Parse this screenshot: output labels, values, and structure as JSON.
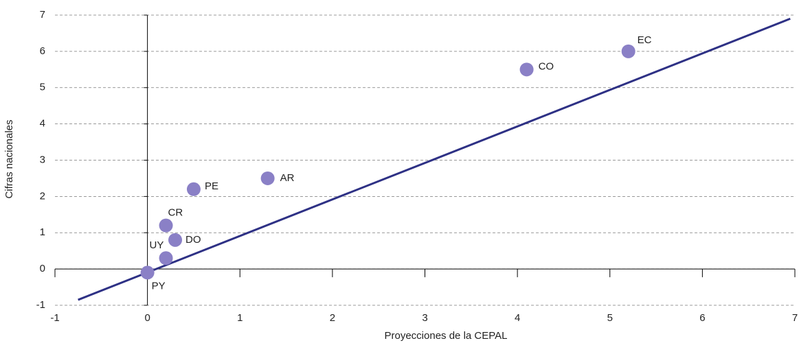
{
  "chart_data": {
    "type": "scatter",
    "x_label": "Proyecciones de la CEPAL",
    "y_label": "Cifras nacionales",
    "labels": [
      "PE",
      "AR",
      "CO",
      "EC",
      "CR",
      "DO",
      "UY",
      "PY"
    ],
    "x": [
      0.5,
      1.3,
      4.1,
      5.2,
      0.2,
      0.3,
      0.2,
      0
    ],
    "y": [
      2.2,
      2.5,
      5.5,
      6.0,
      1.2,
      0.8,
      0.3,
      -0.1
    ],
    "color": "#8a80c6",
    "reference_line": {
      "x": [
        -0.75,
        6.95
      ],
      "y": [
        -0.85,
        6.9
      ],
      "color": "#2e3185"
    },
    "xlim": [
      -1,
      7
    ],
    "ylim": [
      -1,
      7
    ],
    "xticks": [
      -1,
      0,
      1,
      2,
      3,
      4,
      5,
      6,
      7
    ],
    "yticks": [
      -1,
      0,
      1,
      2,
      3,
      4,
      5,
      6,
      7
    ],
    "grid": true
  }
}
